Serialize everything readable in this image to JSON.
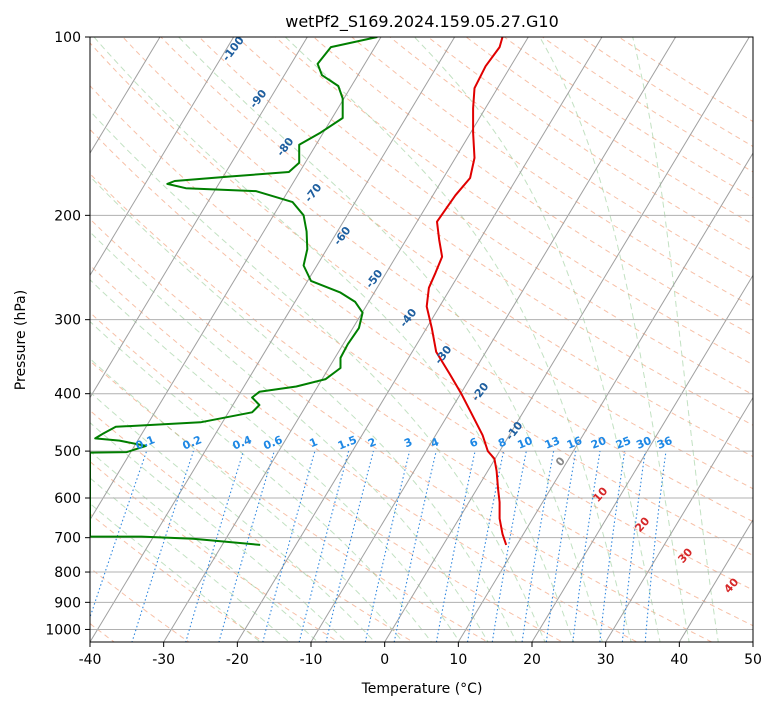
{
  "chart_data": {
    "type": "line",
    "title": "wetPf2_S169.2024.159.05.27.G10",
    "xlabel": "Temperature (°C)",
    "ylabel": "Pressure (hPa)",
    "xlim": [
      -40,
      50
    ],
    "ylim": [
      1050,
      100
    ],
    "y_scale": "log",
    "grid": true,
    "x_ticks": [
      -40,
      -30,
      -20,
      -10,
      0,
      10,
      20,
      30,
      40,
      50
    ],
    "y_ticks": [
      100,
      200,
      300,
      400,
      500,
      600,
      700,
      800,
      900,
      1000
    ],
    "series": [
      {
        "color": "#e00000",
        "points": [
          [
            16.5,
            720
          ],
          [
            16.0,
            690
          ],
          [
            15.6,
            650
          ],
          [
            15.6,
            610
          ],
          [
            15.4,
            580
          ],
          [
            15.2,
            540
          ],
          [
            14.9,
            515
          ],
          [
            14.0,
            500
          ],
          [
            13.3,
            470
          ],
          [
            11.7,
            430
          ],
          [
            10.4,
            400
          ],
          [
            8.8,
            370
          ],
          [
            7.0,
            340
          ],
          [
            6.4,
            310
          ],
          [
            5.7,
            285
          ],
          [
            6.0,
            265
          ],
          [
            6.9,
            250
          ],
          [
            7.8,
            235
          ],
          [
            7.4,
            220
          ],
          [
            7.1,
            205
          ],
          [
            9.6,
            185
          ],
          [
            11.6,
            173
          ],
          [
            12.2,
            160
          ],
          [
            12.0,
            145
          ],
          [
            12.0,
            132
          ],
          [
            12.2,
            122
          ],
          [
            13.7,
            112
          ],
          [
            15.6,
            104
          ],
          [
            16.0,
            100
          ]
        ]
      },
      {
        "color": "#007f00",
        "points": [
          [
            -16.9,
            720
          ],
          [
            -26.0,
            703
          ],
          [
            -33.0,
            697
          ],
          [
            -40.0,
            697
          ],
          [
            -40.0,
            503
          ],
          [
            -35.0,
            502
          ],
          [
            -32.4,
            490
          ],
          [
            -36.0,
            480
          ],
          [
            -39.3,
            476
          ],
          [
            -38.2,
            467
          ],
          [
            -36.5,
            455
          ],
          [
            -25.0,
            447
          ],
          [
            -18.0,
            430
          ],
          [
            -17.0,
            418
          ],
          [
            -18.0,
            406
          ],
          [
            -17.0,
            397
          ],
          [
            -12.0,
            389
          ],
          [
            -8.0,
            378
          ],
          [
            -6.0,
            362
          ],
          [
            -6.0,
            348
          ],
          [
            -5.0,
            330
          ],
          [
            -3.5,
            310
          ],
          [
            -3.0,
            292
          ],
          [
            -4.0,
            280
          ],
          [
            -6.0,
            270
          ],
          [
            -10.0,
            258
          ],
          [
            -11.0,
            243
          ],
          [
            -10.5,
            228
          ],
          [
            -10.6,
            213
          ],
          [
            -11.0,
            200
          ],
          [
            -12.5,
            190
          ],
          [
            -17.5,
            182
          ],
          [
            -27.0,
            180
          ],
          [
            -29.5,
            177
          ],
          [
            -28.5,
            175
          ],
          [
            -21.0,
            172
          ],
          [
            -13.0,
            169
          ],
          [
            -11.6,
            163
          ],
          [
            -11.6,
            152
          ],
          [
            -8.7,
            145
          ],
          [
            -5.7,
            137
          ],
          [
            -5.7,
            127
          ],
          [
            -6.3,
            121
          ],
          [
            -8.5,
            116
          ],
          [
            -9.1,
            111
          ],
          [
            -7.3,
            104
          ],
          [
            -1.0,
            100
          ]
        ]
      }
    ],
    "isotherm_labels": [
      "-100",
      "-90",
      "-80",
      "-70",
      "-60",
      "-50",
      "-40",
      "-30",
      "-20",
      "-10"
    ],
    "mixing_ratio_labels": [
      "0.1",
      "0.2",
      "0.4",
      "0.6",
      "1",
      "1.5",
      "2",
      "3",
      "4",
      "6",
      "8",
      "10",
      "13",
      "16",
      "20",
      "25",
      "30",
      "36"
    ],
    "moist_adiabat_labels": [
      "0",
      "10",
      "20",
      "30",
      "40"
    ]
  }
}
